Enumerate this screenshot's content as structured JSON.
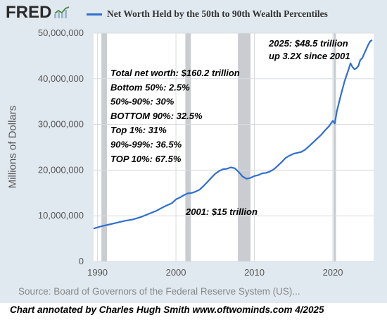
{
  "header": {
    "logo_text": "FRED",
    "logo_icon": "sparkline-icon",
    "series_title": "Net Worth Held by the 50th to 90th Wealth Percentiles"
  },
  "colors": {
    "panel_bg": "#e1e9f0",
    "plot_bg": "#ffffff",
    "line": "#2f6fd0",
    "recession": "#c9ccd0",
    "grid": "#d7dbe0"
  },
  "chart_data": {
    "type": "line",
    "title": "Net Worth Held by the 50th to 90th Wealth Percentiles",
    "ylabel": "Millions of Dollars",
    "xlabel": "",
    "xlim": [
      1989.5,
      2025.2
    ],
    "ylim": [
      0,
      50000000
    ],
    "xticks": [
      1990,
      2000,
      2010,
      2020
    ],
    "yticks": [
      0,
      10000000,
      20000000,
      30000000,
      40000000,
      50000000
    ],
    "ytick_labels": [
      "0",
      "10,000,000",
      "20,000,000",
      "30,000,000",
      "40,000,000",
      "50,000,000"
    ],
    "xtick_labels": [
      "1990",
      "2000",
      "2010",
      "2020"
    ],
    "grid": true,
    "recessions": [
      [
        1990.5,
        1991.2
      ],
      [
        2001.2,
        2001.9
      ],
      [
        2007.9,
        2009.5
      ],
      [
        2020.1,
        2020.4
      ]
    ],
    "series": [
      {
        "name": "Net Worth Held by the 50th to 90th Wealth Percentiles",
        "x": [
          1989.5,
          1990.5,
          1991.5,
          1992.5,
          1993.5,
          1994.5,
          1995.5,
          1996.5,
          1997.5,
          1998.5,
          1999.5,
          2000.0,
          2000.5,
          2001.0,
          2001.5,
          2002.0,
          2002.5,
          2003.0,
          2003.5,
          2004.0,
          2004.5,
          2005.0,
          2005.5,
          2006.0,
          2006.5,
          2007.0,
          2007.5,
          2008.0,
          2008.5,
          2009.0,
          2009.5,
          2010.0,
          2010.5,
          2011.0,
          2011.5,
          2012.0,
          2012.5,
          2013.0,
          2013.5,
          2014.0,
          2014.5,
          2015.0,
          2015.5,
          2016.0,
          2016.5,
          2017.0,
          2017.5,
          2018.0,
          2018.5,
          2019.0,
          2019.5,
          2020.0,
          2020.25,
          2020.5,
          2021.0,
          2021.5,
          2022.0,
          2022.25,
          2022.5,
          2022.75,
          2023.0,
          2023.25,
          2023.5,
          2023.75,
          2024.0,
          2024.5,
          2024.75,
          2025.0
        ],
        "values": [
          7200000,
          7700000,
          8100000,
          8500000,
          8900000,
          9200000,
          9700000,
          10400000,
          11100000,
          12000000,
          12800000,
          13600000,
          14000000,
          14500000,
          14900000,
          15000000,
          15300000,
          15700000,
          16500000,
          17400000,
          18300000,
          19200000,
          19800000,
          20200000,
          20300000,
          20600000,
          20400000,
          19600000,
          18600000,
          18100000,
          18300000,
          18700000,
          18900000,
          19300000,
          19400000,
          19700000,
          20200000,
          21000000,
          21800000,
          22700000,
          23200000,
          23600000,
          23800000,
          24000000,
          24500000,
          25300000,
          26100000,
          26900000,
          27700000,
          28700000,
          29600000,
          30800000,
          30200000,
          32800000,
          36300000,
          39500000,
          42000000,
          43400000,
          42600000,
          42100000,
          42300000,
          42800000,
          44100000,
          44500000,
          45500000,
          47400000,
          48200000,
          48500000
        ]
      }
    ]
  },
  "annotations": {
    "breakdown": [
      "Total net worth:  $160.2 trillion",
      "Bottom 50%:  2.5%",
      "50%-90%:  30%",
      "BOTTOM 90%:  32.5%",
      "Top 1%: 31%",
      "90%-99%: 36.5%",
      "TOP 10%:  67.5%"
    ],
    "recent_line1": "2025: $48.5 trillion",
    "recent_line2": "up 3.2X since 2001",
    "start_note": "2001: $15 trillion"
  },
  "source": "Source: Board of Governors of the Federal Reserve System (US)...",
  "credit": "Chart annotated by Charles Hugh Smith  www.oftwominds.com  4/2025"
}
